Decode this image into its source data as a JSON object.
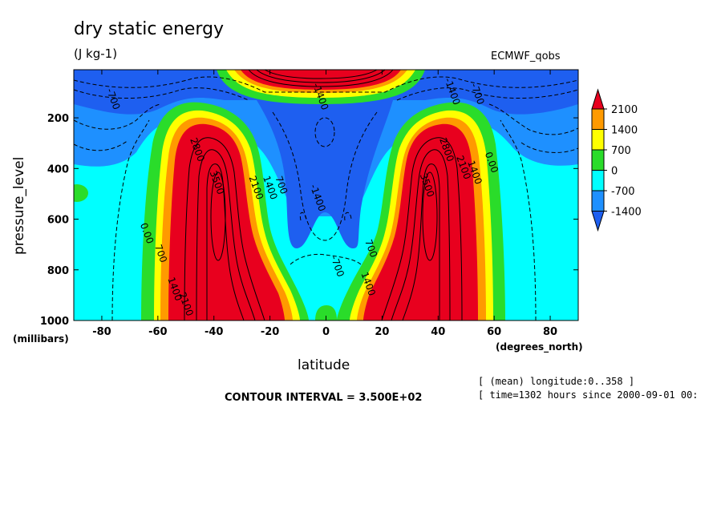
{
  "chart_data": {
    "type": "heatmap",
    "title": "dry static energy",
    "units": "(J kg-1)",
    "dataset": "ECMWF_qobs",
    "xlabel": "latitude",
    "ylabel": "pressure_level",
    "x_units": "(degrees_north)",
    "y_units": "(millibars)",
    "xlim": [
      -90,
      90
    ],
    "ylim": [
      1000,
      10
    ],
    "x_ticks": [
      -80,
      -60,
      -40,
      -20,
      0,
      20,
      40,
      60,
      80
    ],
    "y_ticks": [
      200,
      400,
      600,
      800,
      1000
    ],
    "contour_interval": "CONTOUR INTERVAL = 3.500E+02",
    "meta": [
      "[ (mean) longitude:0..358 ]",
      "[ time=1302 hours since 2000-09-01 00:"
    ],
    "legend": {
      "labels": [
        "2100",
        "1400",
        "700",
        "0",
        "-700",
        "-1400"
      ],
      "colors": [
        "#e8001e",
        "#ff9a00",
        "#ffff00",
        "#2adc2a",
        "#00ffff",
        "#1e90ff",
        "#1e5ff0"
      ]
    },
    "contour_labels": [
      {
        "text": "-700",
        "lat": -77,
        "p": 130
      },
      {
        "text": "-1400",
        "lat": -4,
        "p": 520
      },
      {
        "text": "-1400",
        "lat": 44,
        "p": 100
      },
      {
        "text": "-700",
        "lat": 53,
        "p": 110
      },
      {
        "text": "-700",
        "lat": 3,
        "p": 790
      },
      {
        "text": "-1400",
        "lat": -3,
        "p": 120
      },
      {
        "text": "0.00",
        "lat": -65,
        "p": 660
      },
      {
        "text": "700",
        "lat": -60,
        "p": 740
      },
      {
        "text": "1400",
        "lat": -55,
        "p": 880
      },
      {
        "text": "2100",
        "lat": -51,
        "p": 940
      },
      {
        "text": "3500",
        "lat": -40,
        "p": 460
      },
      {
        "text": "2800",
        "lat": -47,
        "p": 330
      },
      {
        "text": "2100",
        "lat": -26,
        "p": 480
      },
      {
        "text": "1400",
        "lat": -21,
        "p": 480
      },
      {
        "text": "700",
        "lat": -17,
        "p": 470
      },
      {
        "text": "3500",
        "lat": 35,
        "p": 470
      },
      {
        "text": "2800",
        "lat": 42,
        "p": 330
      },
      {
        "text": "2100",
        "lat": 48,
        "p": 400
      },
      {
        "text": "1400",
        "lat": 52,
        "p": 420
      },
      {
        "text": "0.00",
        "lat": 58,
        "p": 380
      },
      {
        "text": "700",
        "lat": 15,
        "p": 720
      },
      {
        "text": "1400",
        "lat": 14,
        "p": 860
      }
    ]
  }
}
